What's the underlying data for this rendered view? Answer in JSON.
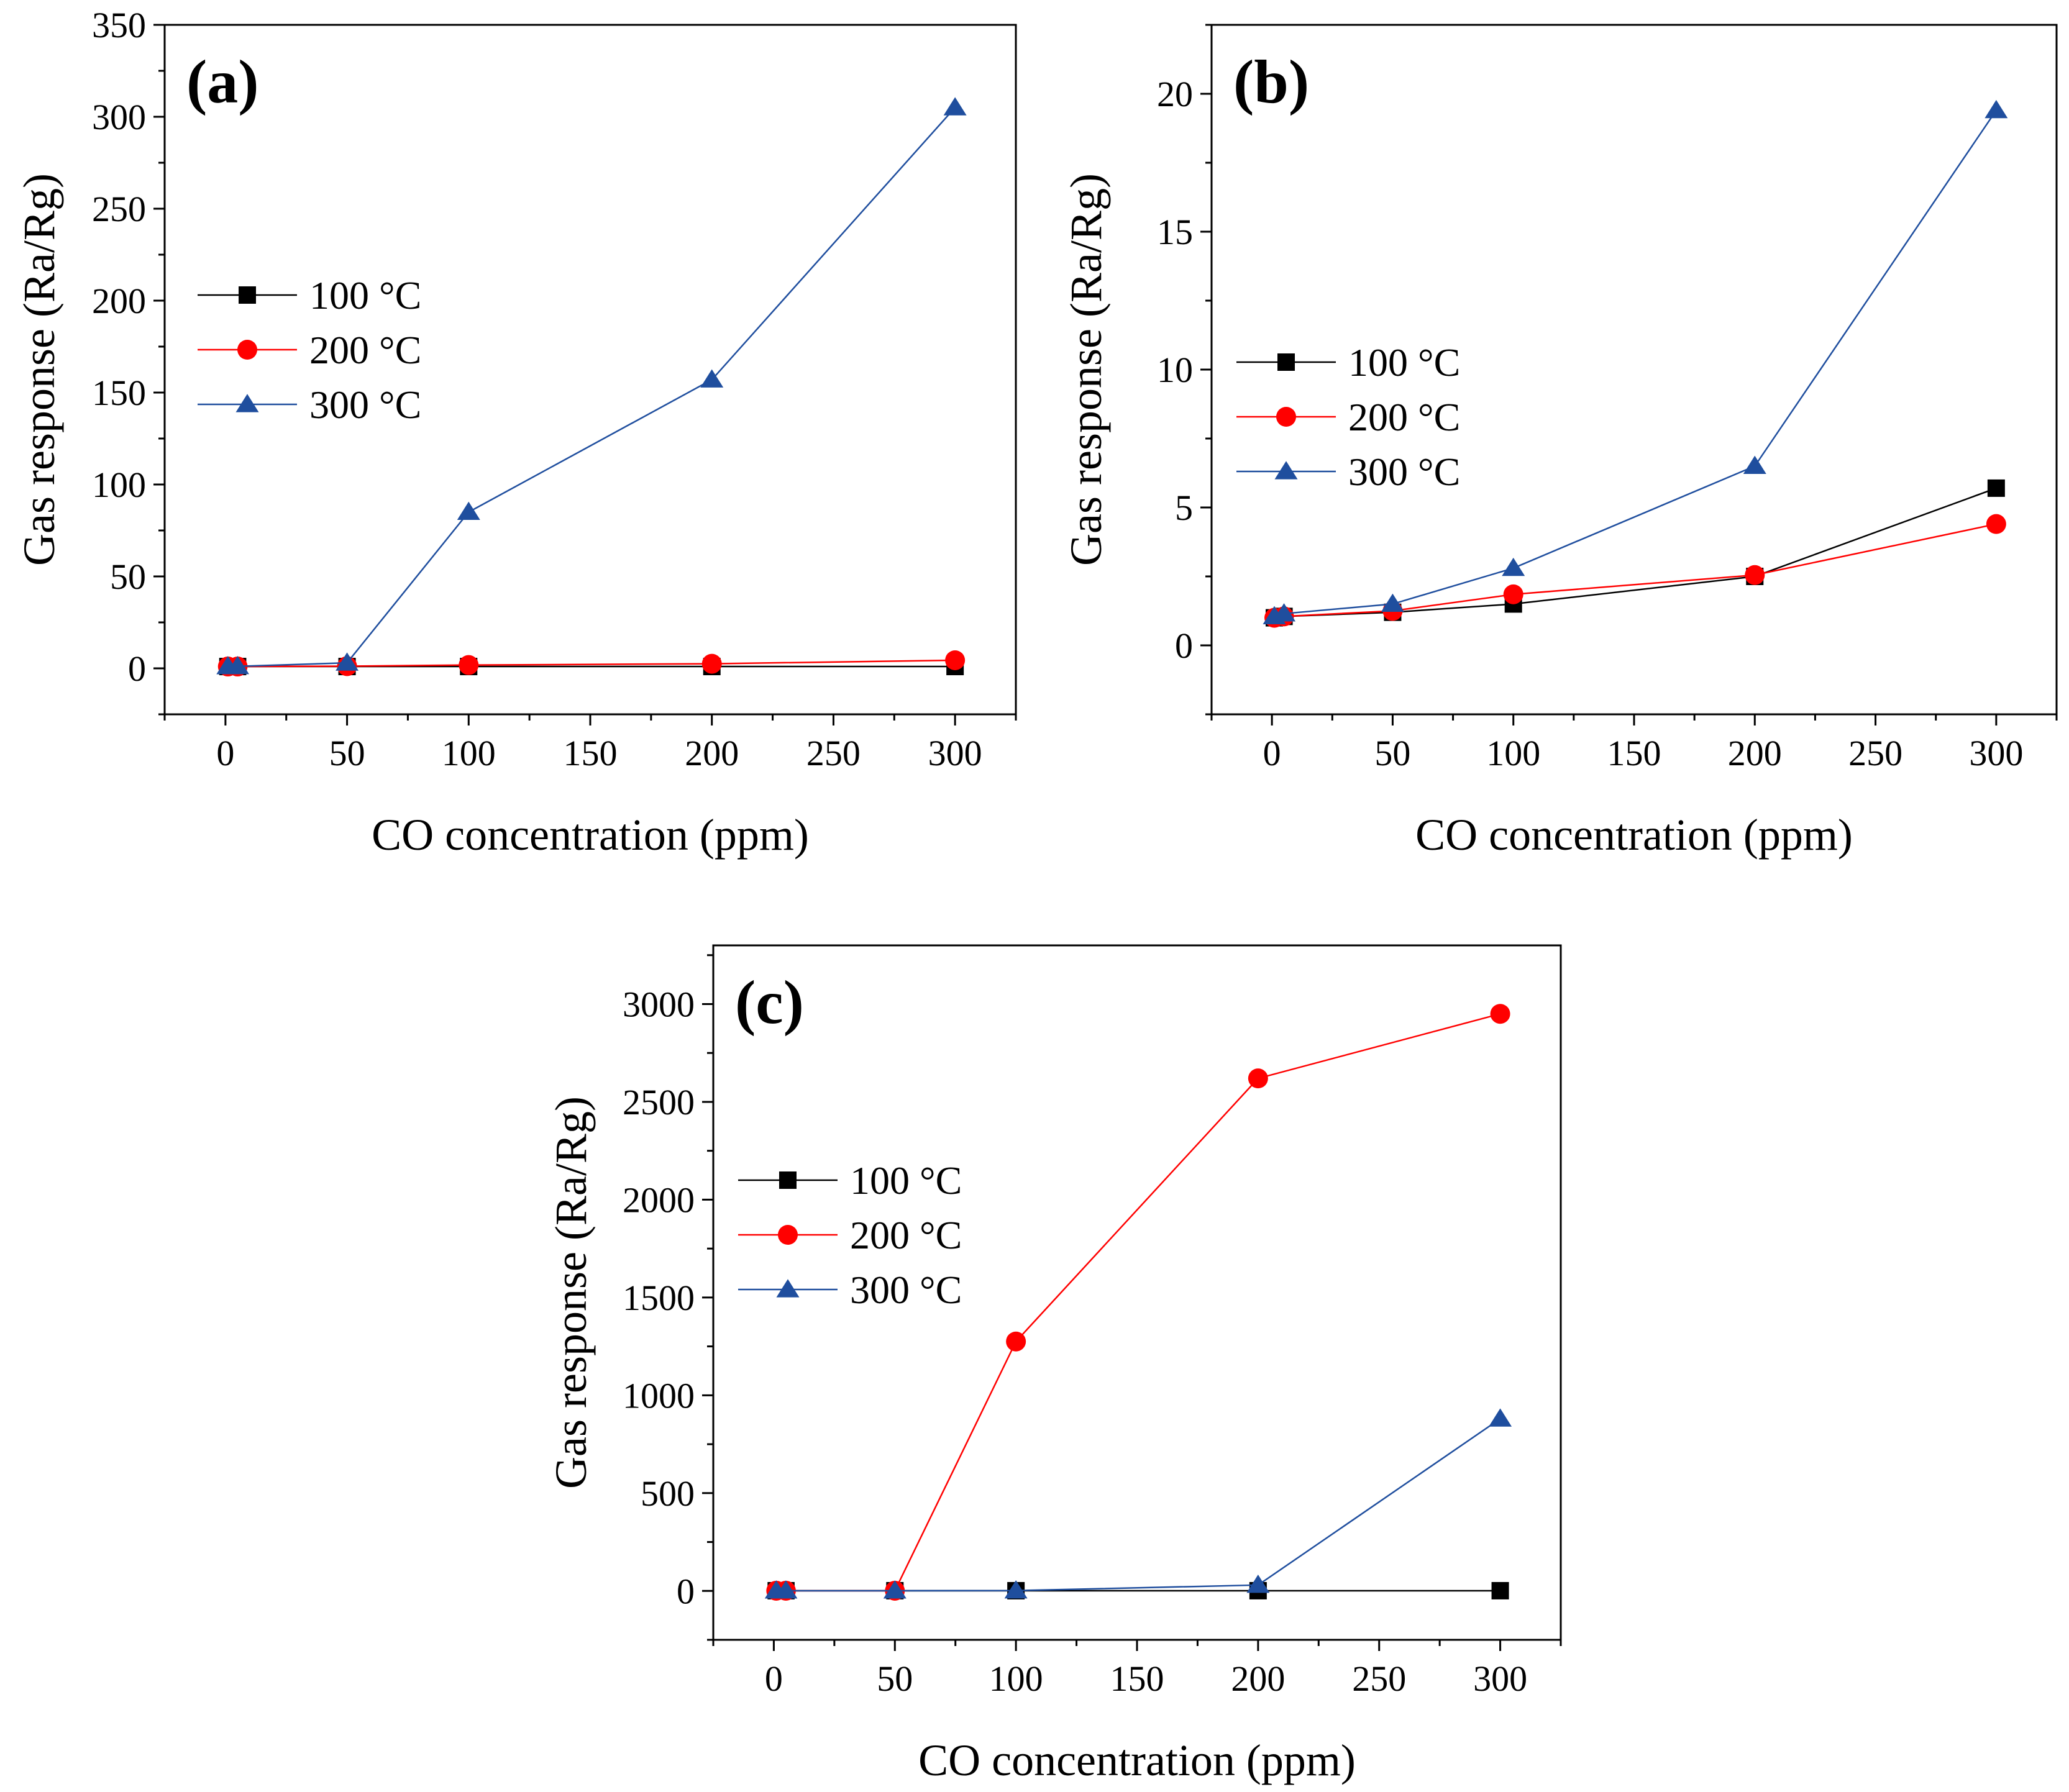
{
  "figure": {
    "colors": {
      "100C": "#000000",
      "200C": "#ff0000",
      "300C": "#1f4e9e",
      "axis": "#000000"
    }
  },
  "chart_data": [
    {
      "id": "a",
      "type": "line",
      "panel_label": "(a)",
      "xlabel": "CO concentration (ppm)",
      "ylabel": "Gas response (Ra/Rg)",
      "xlim": [
        -25,
        325
      ],
      "ylim": [
        -25,
        350
      ],
      "xticks": [
        0,
        50,
        100,
        150,
        200,
        250,
        300
      ],
      "yticks": [
        0,
        50,
        100,
        150,
        200,
        250,
        300,
        350
      ],
      "x": [
        1,
        5,
        50,
        100,
        200,
        300
      ],
      "series": [
        {
          "name": "100 °C",
          "marker": "square",
          "color": "#000000",
          "values": [
            1,
            1,
            1,
            1,
            1,
            1
          ]
        },
        {
          "name": "200 °C",
          "marker": "circle",
          "color": "#ff0000",
          "values": [
            1,
            1,
            1.2,
            1.8,
            2.5,
            4.4
          ]
        },
        {
          "name": "300 °C",
          "marker": "triangle",
          "color": "#1f4e9e",
          "values": [
            1.05,
            1.1,
            3,
            85,
            157,
            305
          ]
        }
      ],
      "legend_position": "left-middle"
    },
    {
      "id": "b",
      "type": "line",
      "panel_label": "(b)",
      "xlabel": "CO concentration (ppm)",
      "ylabel": "Gas response (Ra/Rg)",
      "xlim": [
        -25,
        325
      ],
      "ylim": [
        -2.5,
        22.5
      ],
      "xticks": [
        0,
        50,
        100,
        150,
        200,
        250,
        300
      ],
      "yticks": [
        0,
        5,
        10,
        15,
        20
      ],
      "x": [
        1,
        5,
        50,
        100,
        200,
        300
      ],
      "series": [
        {
          "name": "100 °C",
          "marker": "square",
          "color": "#000000",
          "values": [
            1,
            1.05,
            1.2,
            1.5,
            2.5,
            5.7
          ]
        },
        {
          "name": "200 °C",
          "marker": "circle",
          "color": "#ff0000",
          "values": [
            1,
            1.05,
            1.25,
            1.85,
            2.55,
            4.4
          ]
        },
        {
          "name": "300 °C",
          "marker": "triangle",
          "color": "#1f4e9e",
          "values": [
            1.05,
            1.15,
            1.5,
            2.8,
            6.5,
            19.4
          ]
        }
      ],
      "legend_position": "left-middle"
    },
    {
      "id": "c",
      "type": "line",
      "panel_label": "(c)",
      "xlabel": "CO concentration (ppm)",
      "ylabel": "Gas response (Ra/Rg)",
      "xlim": [
        -25,
        325
      ],
      "ylim": [
        -250,
        3300
      ],
      "xticks": [
        0,
        50,
        100,
        150,
        200,
        250,
        300
      ],
      "yticks": [
        0,
        500,
        1000,
        1500,
        2000,
        2500,
        3000
      ],
      "x": [
        1,
        5,
        50,
        100,
        200,
        300
      ],
      "series": [
        {
          "name": "100 °C",
          "marker": "square",
          "color": "#000000",
          "values": [
            1,
            1,
            1,
            1,
            1,
            1
          ]
        },
        {
          "name": "200 °C",
          "marker": "circle",
          "color": "#ff0000",
          "values": [
            1,
            1,
            1,
            1275,
            2620,
            2950
          ]
        },
        {
          "name": "300 °C",
          "marker": "triangle",
          "color": "#1f4e9e",
          "values": [
            1,
            1,
            1,
            1.5,
            30,
            880
          ]
        }
      ],
      "legend_position": "left-middle"
    }
  ]
}
